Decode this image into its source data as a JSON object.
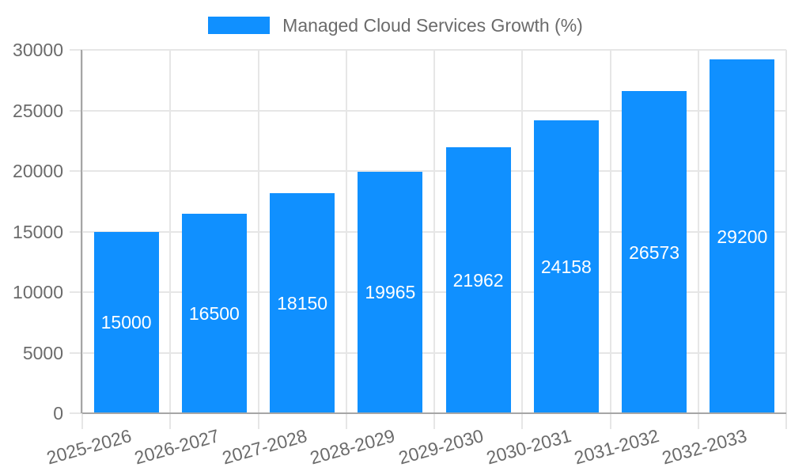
{
  "legend": {
    "label": "Managed Cloud Services Growth (%)",
    "swatch_color": "#1090ff"
  },
  "chart_data": {
    "type": "bar",
    "title": "Managed Cloud Services Growth (%)",
    "categories": [
      "2025-2026",
      "2026-2027",
      "2027-2028",
      "2028-2029",
      "2029-2030",
      "2030-2031",
      "2031-2032",
      "2032-2033"
    ],
    "values": [
      15000,
      16500,
      18150,
      19965,
      21962,
      24158,
      26573,
      29200
    ],
    "value_labels": [
      "15000",
      "16500",
      "18150",
      "19965",
      "21962",
      "24158",
      "26573",
      "29200"
    ],
    "xlabel": "",
    "ylabel": "",
    "ylim": [
      0,
      30000
    ],
    "yticks": [
      0,
      5000,
      10000,
      15000,
      20000,
      25000,
      30000
    ],
    "ytick_labels": [
      "0",
      "5000",
      "10000",
      "15000",
      "20000",
      "25000",
      "30000"
    ],
    "grid": true,
    "legend_position": "top",
    "colors": {
      "bar": "#1090ff",
      "value_label_text": "#ffffff",
      "gridline": "#e6e6e6",
      "axis_line": "#a6a6a6",
      "tick_label_text": "#6b6b6b",
      "legend_text": "#6b6b6b",
      "background": "#ffffff"
    }
  }
}
